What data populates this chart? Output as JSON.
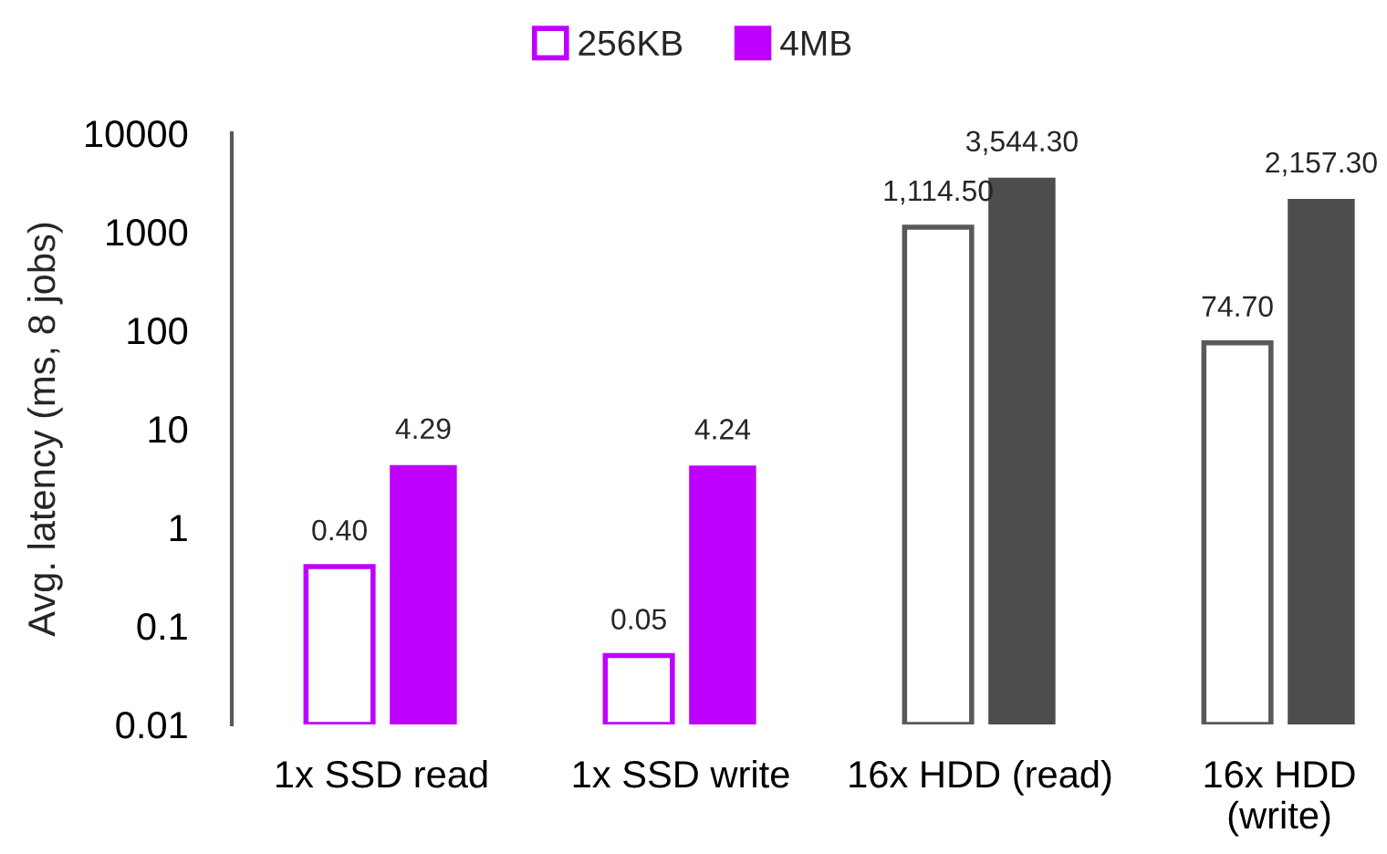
{
  "chart_data": {
    "type": "bar",
    "categories": [
      "1x SSD read",
      "1x SSD write",
      "16x HDD (read)",
      "16x HDD (write)"
    ],
    "series": [
      {
        "name": "256KB",
        "color": "#bf00ff",
        "colors": [
          "#bf00ff",
          "#bf00ff",
          "#595959",
          "#595959"
        ],
        "line_style": "solid",
        "values": [
          0.4,
          0.05,
          1114.5,
          74.7
        ],
        "value_labels": [
          "0.40",
          "0.05",
          "1,114.50",
          "74.70"
        ]
      },
      {
        "name": "4MB",
        "color": "#bf00ff",
        "colors": [
          "#bf00ff",
          "#bf00ff",
          "#4d4d4d",
          "#4d4d4d"
        ],
        "values": [
          4.29,
          4.24,
          3544.3,
          2157.3
        ],
        "value_labels": [
          "4.29",
          "4.24",
          "3,544.30",
          "2,157.30"
        ]
      }
    ],
    "ylabel": "Avg. latency (ms, 8 jobs)",
    "log": true,
    "ylim": [
      0.01,
      10000
    ],
    "yticks": [
      0.01,
      0.1,
      1,
      10,
      100,
      1000,
      10000
    ],
    "grid": false,
    "legend": "top"
  }
}
